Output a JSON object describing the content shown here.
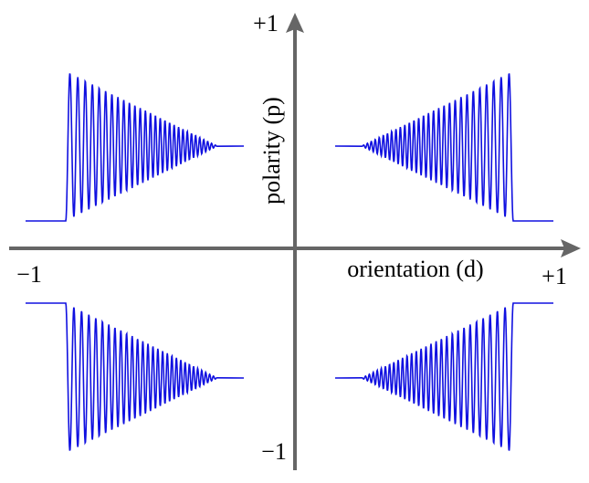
{
  "axes": {
    "y_max_label": "+1",
    "y_min_label": "−1",
    "x_min_label": "−1",
    "x_max_label": "+1",
    "x_label": "orientation (d)",
    "y_label": "polarity (p)"
  }
}
